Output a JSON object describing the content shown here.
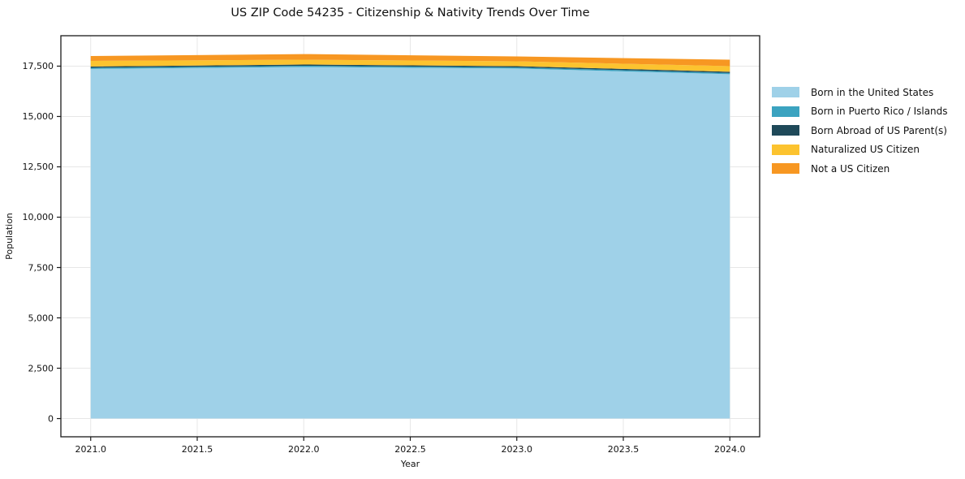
{
  "figure": {
    "title": "US ZIP Code 54235 - Citizenship & Nativity Trends Over Time",
    "background_color": "#ffffff",
    "grid_color": "#e7e7e7",
    "spine_color": "#1a1a1a",
    "text_color": "#111111"
  },
  "chart_data": {
    "type": "area",
    "stacked": true,
    "title": "US ZIP Code 54235 - Citizenship & Nativity Trends Over Time",
    "xlabel": "Year",
    "ylabel": "Population",
    "x": [
      2021,
      2022,
      2023,
      2024
    ],
    "series": [
      {
        "name": "Born in the United States",
        "color": "#9fd1e8",
        "values": [
          17360,
          17460,
          17380,
          17100
        ]
      },
      {
        "name": "Born in Puerto Rico / Islands",
        "color": "#3ba3c0",
        "values": [
          60,
          60,
          60,
          60
        ]
      },
      {
        "name": "Born Abroad of US Parent(s)",
        "color": "#1f4959",
        "values": [
          60,
          60,
          60,
          60
        ]
      },
      {
        "name": "Naturalized US Citizen",
        "color": "#fcc32f",
        "values": [
          280,
          240,
          240,
          280
        ]
      },
      {
        "name": "Not a US Citizen",
        "color": "#f79722",
        "values": [
          240,
          280,
          240,
          320
        ]
      }
    ],
    "totals_by_year": [
      18000,
      18100,
      17980,
      17820
    ],
    "xticks": [
      "2021.0",
      "2021.5",
      "2022.0",
      "2022.5",
      "2023.0",
      "2023.5",
      "2024.0"
    ],
    "xtick_values": [
      2021.0,
      2021.5,
      2022.0,
      2022.5,
      2023.0,
      2023.5,
      2024.0
    ],
    "yticks": [
      "0",
      "2,500",
      "5,000",
      "7,500",
      "10,000",
      "12,500",
      "15,000",
      "17,500"
    ],
    "ytick_values": [
      0,
      2500,
      5000,
      7500,
      10000,
      12500,
      15000,
      17500
    ],
    "xlim": [
      2020.86,
      2024.14
    ],
    "ylim": [
      -905,
      19010
    ],
    "grid": true,
    "legend_position": "right"
  },
  "legend": {
    "items": [
      {
        "label": "Born in the United States",
        "color": "#9fd1e8"
      },
      {
        "label": "Born in Puerto Rico / Islands",
        "color": "#3ba3c0"
      },
      {
        "label": "Born Abroad of US Parent(s)",
        "color": "#1f4959"
      },
      {
        "label": "Naturalized US Citizen",
        "color": "#fcc32f"
      },
      {
        "label": "Not a US Citizen",
        "color": "#f79722"
      }
    ]
  }
}
